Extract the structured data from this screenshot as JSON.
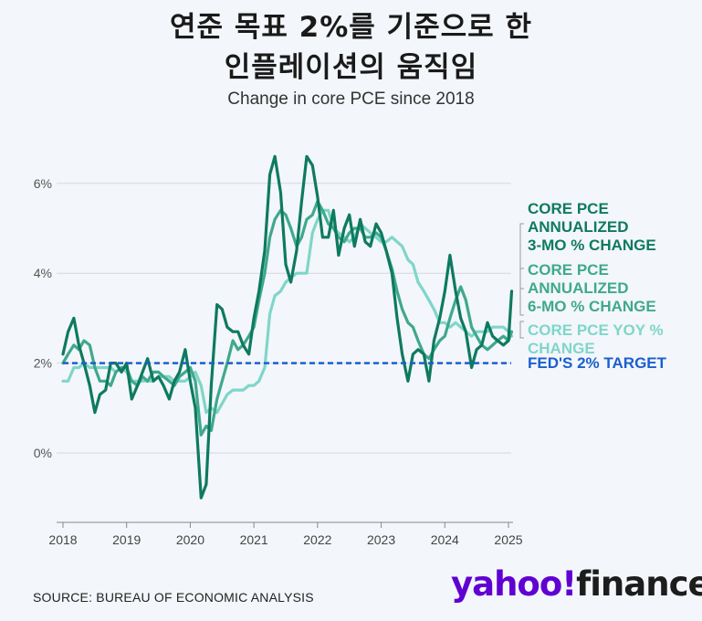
{
  "title_line1": "연준 목표 2%를 기준으로 한",
  "title_line2": "인플레이션의 움직임",
  "subtitle": "Change in core PCE since 2018",
  "source": "SOURCE: BUREAU OF ECONOMIC ANALYSIS",
  "logo": {
    "part1": "yahoo!",
    "part2": "finance"
  },
  "colors": {
    "three_mo": "#0e7a5f",
    "six_mo": "#3fa98c",
    "yoy": "#7fd6c9",
    "target": "#1a5fcf",
    "grid": "#d5d8de"
  },
  "chart_data": {
    "type": "line",
    "ylim": [
      -1.5,
      7
    ],
    "xlim": [
      2018,
      2025.1
    ],
    "y_ticks": [
      0,
      2,
      4,
      6
    ],
    "y_tick_labels": [
      "0%",
      "2%",
      "4%",
      "6%"
    ],
    "x_ticks": [
      2018,
      2019,
      2020,
      2021,
      2022,
      2023,
      2024,
      2025
    ],
    "x_tick_labels": [
      "2018",
      "2019",
      "2020",
      "2021",
      "2022",
      "2023",
      "2024",
      "2025"
    ],
    "grid": true,
    "legend_position": "right",
    "target": {
      "label": "FED'S 2% TARGET",
      "value": 2
    },
    "series": [
      {
        "name": "CORE PCE\nANNUALIZED\n3-MO % CHANGE",
        "x": [
          2018.0,
          2018.08,
          2018.17,
          2018.25,
          2018.33,
          2018.42,
          2018.5,
          2018.58,
          2018.67,
          2018.75,
          2018.83,
          2018.92,
          2019.0,
          2019.08,
          2019.17,
          2019.25,
          2019.33,
          2019.42,
          2019.5,
          2019.58,
          2019.67,
          2019.75,
          2019.83,
          2019.92,
          2020.0,
          2020.08,
          2020.17,
          2020.25,
          2020.33,
          2020.42,
          2020.5,
          2020.58,
          2020.67,
          2020.75,
          2020.83,
          2020.92,
          2021.0,
          2021.08,
          2021.17,
          2021.25,
          2021.33,
          2021.42,
          2021.5,
          2021.58,
          2021.67,
          2021.75,
          2021.83,
          2021.92,
          2022.0,
          2022.08,
          2022.17,
          2022.25,
          2022.33,
          2022.42,
          2022.5,
          2022.58,
          2022.67,
          2022.75,
          2022.83,
          2022.92,
          2023.0,
          2023.08,
          2023.17,
          2023.25,
          2023.33,
          2023.42,
          2023.5,
          2023.58,
          2023.67,
          2023.75,
          2023.83,
          2023.92,
          2024.0,
          2024.08,
          2024.17,
          2024.25,
          2024.33,
          2024.42,
          2024.5,
          2024.58,
          2024.67,
          2024.75,
          2024.83,
          2024.92,
          2025.0,
          2025.05
        ],
        "values": [
          2.2,
          2.7,
          3.0,
          2.4,
          2.0,
          1.5,
          0.9,
          1.3,
          1.4,
          2.0,
          2.0,
          1.8,
          2.0,
          1.2,
          1.5,
          1.8,
          2.1,
          1.6,
          1.7,
          1.5,
          1.2,
          1.6,
          1.8,
          2.3,
          1.6,
          1.0,
          -1.0,
          -0.7,
          1.5,
          3.3,
          3.2,
          2.8,
          2.7,
          2.7,
          2.4,
          2.2,
          3.0,
          3.6,
          4.5,
          6.2,
          6.6,
          5.8,
          4.2,
          3.8,
          4.5,
          5.6,
          6.6,
          6.4,
          5.7,
          4.8,
          4.8,
          5.4,
          4.4,
          5.0,
          5.3,
          4.6,
          5.2,
          4.7,
          4.6,
          5.1,
          4.9,
          4.5,
          4.0,
          3.0,
          2.2,
          1.6,
          2.2,
          2.3,
          2.2,
          1.6,
          2.5,
          3.0,
          3.6,
          4.4,
          3.6,
          3.0,
          2.7,
          1.9,
          2.3,
          2.4,
          2.9,
          2.6,
          2.5,
          2.4,
          2.5,
          3.6
        ]
      },
      {
        "name": "CORE PCE\nANNUALIZED\n6-MO % CHANGE",
        "x": [
          2018.0,
          2018.08,
          2018.17,
          2018.25,
          2018.33,
          2018.42,
          2018.5,
          2018.58,
          2018.67,
          2018.75,
          2018.83,
          2018.92,
          2019.0,
          2019.08,
          2019.17,
          2019.25,
          2019.33,
          2019.42,
          2019.5,
          2019.58,
          2019.67,
          2019.75,
          2019.83,
          2019.92,
          2020.0,
          2020.08,
          2020.17,
          2020.25,
          2020.33,
          2020.42,
          2020.5,
          2020.58,
          2020.67,
          2020.75,
          2020.83,
          2020.92,
          2021.0,
          2021.08,
          2021.17,
          2021.25,
          2021.33,
          2021.42,
          2021.5,
          2021.58,
          2021.67,
          2021.75,
          2021.83,
          2021.92,
          2022.0,
          2022.08,
          2022.17,
          2022.25,
          2022.33,
          2022.42,
          2022.5,
          2022.58,
          2022.67,
          2022.75,
          2022.83,
          2022.92,
          2023.0,
          2023.08,
          2023.17,
          2023.25,
          2023.33,
          2023.42,
          2023.5,
          2023.58,
          2023.67,
          2023.75,
          2023.83,
          2023.92,
          2024.0,
          2024.08,
          2024.17,
          2024.25,
          2024.33,
          2024.42,
          2024.5,
          2024.58,
          2024.67,
          2024.75,
          2024.83,
          2024.92,
          2025.0,
          2025.05
        ],
        "values": [
          2.0,
          2.2,
          2.4,
          2.3,
          2.5,
          2.4,
          1.9,
          1.6,
          1.6,
          1.5,
          1.8,
          1.9,
          1.9,
          1.6,
          1.5,
          1.7,
          1.6,
          1.8,
          1.8,
          1.7,
          1.6,
          1.5,
          1.7,
          1.8,
          1.9,
          1.6,
          0.4,
          0.6,
          0.5,
          1.2,
          1.6,
          2.0,
          2.5,
          2.3,
          2.4,
          2.6,
          2.8,
          3.4,
          4.0,
          4.8,
          5.2,
          5.4,
          5.3,
          5.0,
          4.6,
          4.8,
          5.2,
          5.3,
          5.6,
          5.4,
          5.1,
          5.0,
          4.8,
          4.7,
          4.9,
          5.0,
          5.0,
          4.8,
          4.8,
          4.9,
          4.8,
          4.5,
          4.1,
          3.6,
          3.2,
          2.9,
          2.8,
          2.5,
          2.2,
          2.1,
          2.3,
          2.5,
          2.6,
          3.0,
          3.4,
          3.7,
          3.4,
          2.8,
          2.6,
          2.4,
          2.3,
          2.4,
          2.5,
          2.6,
          2.5,
          2.7
        ]
      },
      {
        "name": "CORE PCE YOY %\nCHANGE",
        "x": [
          2018.0,
          2018.08,
          2018.17,
          2018.25,
          2018.33,
          2018.42,
          2018.5,
          2018.58,
          2018.67,
          2018.75,
          2018.83,
          2018.92,
          2019.0,
          2019.08,
          2019.17,
          2019.25,
          2019.33,
          2019.42,
          2019.5,
          2019.58,
          2019.67,
          2019.75,
          2019.83,
          2019.92,
          2020.0,
          2020.08,
          2020.17,
          2020.25,
          2020.33,
          2020.42,
          2020.5,
          2020.58,
          2020.67,
          2020.75,
          2020.83,
          2020.92,
          2021.0,
          2021.08,
          2021.17,
          2021.25,
          2021.33,
          2021.42,
          2021.5,
          2021.58,
          2021.67,
          2021.75,
          2021.83,
          2021.92,
          2022.0,
          2022.08,
          2022.17,
          2022.25,
          2022.33,
          2022.42,
          2022.5,
          2022.58,
          2022.67,
          2022.75,
          2022.83,
          2022.92,
          2023.0,
          2023.08,
          2023.17,
          2023.25,
          2023.33,
          2023.42,
          2023.5,
          2023.58,
          2023.67,
          2023.75,
          2023.83,
          2023.92,
          2024.0,
          2024.08,
          2024.17,
          2024.25,
          2024.33,
          2024.42,
          2024.5,
          2024.58,
          2024.67,
          2024.75,
          2024.83,
          2024.92,
          2025.0,
          2025.05
        ],
        "values": [
          1.6,
          1.6,
          1.9,
          1.9,
          2.0,
          1.9,
          1.9,
          1.9,
          1.9,
          1.9,
          1.8,
          1.9,
          1.8,
          1.6,
          1.6,
          1.6,
          1.6,
          1.6,
          1.7,
          1.7,
          1.7,
          1.6,
          1.6,
          1.6,
          1.7,
          1.8,
          1.5,
          0.9,
          1.0,
          0.9,
          1.1,
          1.3,
          1.4,
          1.4,
          1.4,
          1.5,
          1.5,
          1.6,
          1.9,
          3.1,
          3.5,
          3.6,
          3.8,
          3.9,
          4.0,
          4.0,
          4.0,
          4.9,
          5.2,
          5.4,
          5.4,
          5.0,
          4.9,
          4.8,
          4.7,
          4.8,
          5.1,
          5.0,
          4.9,
          4.8,
          4.7,
          4.7,
          4.8,
          4.7,
          4.6,
          4.3,
          4.2,
          3.8,
          3.6,
          3.4,
          3.2,
          2.9,
          2.9,
          2.8,
          2.9,
          2.8,
          2.7,
          2.6,
          2.7,
          2.7,
          2.7,
          2.8,
          2.8,
          2.8,
          2.7,
          2.6
        ]
      }
    ]
  }
}
